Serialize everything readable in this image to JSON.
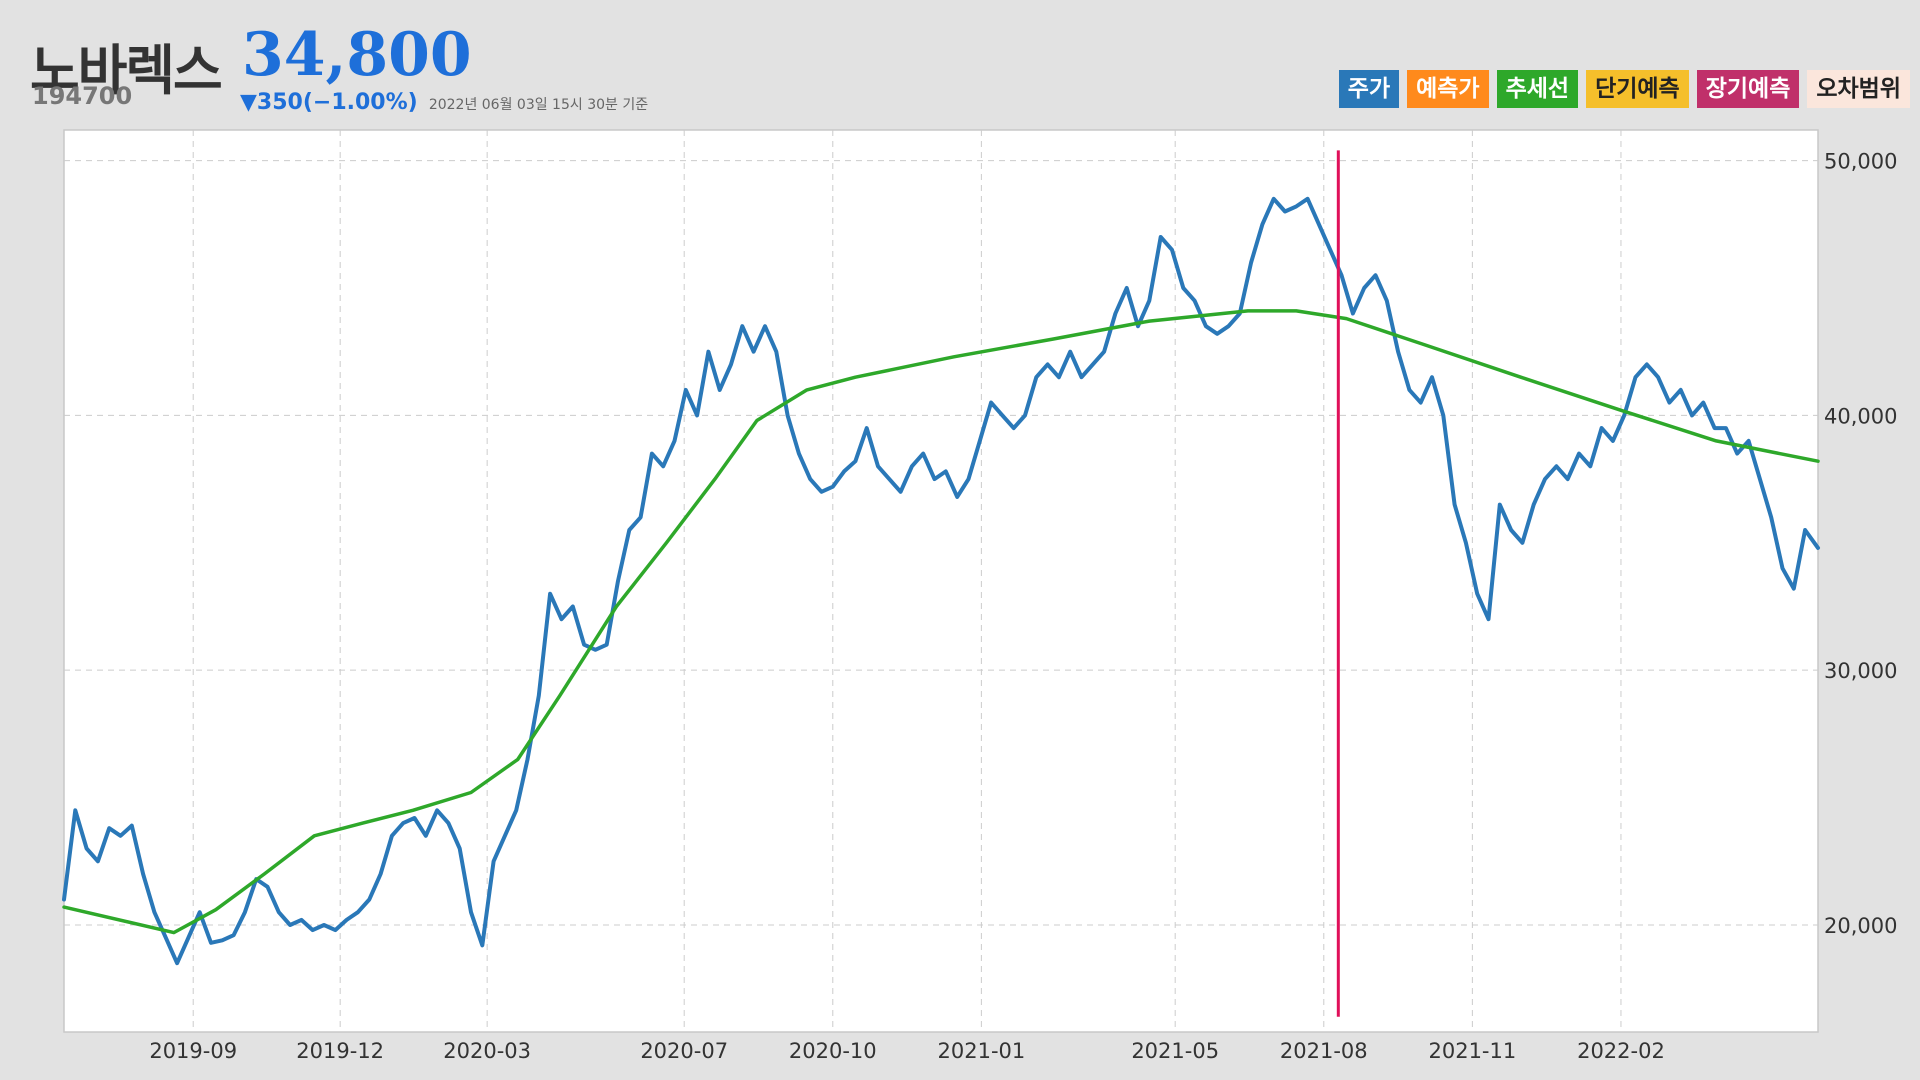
{
  "header": {
    "name": "노바렉스",
    "code": "194700",
    "price": "34,800",
    "change": "▼350(−1.00%)",
    "timestamp": "2022년 06월 03일 15시 30분 기준"
  },
  "legend": [
    {
      "label": "주가",
      "color": "#2a78b8",
      "text_color": "#ffffff"
    },
    {
      "label": "예측가",
      "color": "#ff8a1c",
      "text_color": "#ffffff"
    },
    {
      "label": "추세선",
      "color": "#2ea82a",
      "text_color": "#ffffff"
    },
    {
      "label": "단기예측",
      "color": "#f5bf2b",
      "text_color": "#222222"
    },
    {
      "label": "장기예측",
      "color": "#c0306a",
      "text_color": "#ffffff"
    },
    {
      "label": "오차범위",
      "color": "#fbe6dc",
      "text_color": "#222222"
    }
  ],
  "chart_data": {
    "type": "line",
    "y_axis_position": "right",
    "ylim": [
      15800,
      51200
    ],
    "y_ticks": [
      20000,
      30000,
      40000,
      50000
    ],
    "y_tick_labels": [
      "20,000",
      "30,000",
      "40,000",
      "50,000"
    ],
    "x_ticks": [
      "2019-09",
      "2019-12",
      "2020-03",
      "2020-07",
      "2020-10",
      "2021-01",
      "2021-05",
      "2021-08",
      "2021-11",
      "2022-02"
    ],
    "x_start": "2019-06-13",
    "x_end": "2022-06-03",
    "grid": true,
    "marker": {
      "date": "2021-08-10",
      "color": "#e0105a"
    },
    "series": [
      {
        "name": "주가",
        "color": "#2a78b8",
        "points": [
          [
            "2019-06-13",
            21000
          ],
          [
            "2019-06-20",
            24500
          ],
          [
            "2019-06-27",
            23000
          ],
          [
            "2019-07-04",
            22500
          ],
          [
            "2019-07-11",
            23800
          ],
          [
            "2019-07-18",
            23500
          ],
          [
            "2019-07-25",
            23900
          ],
          [
            "2019-08-01",
            22000
          ],
          [
            "2019-08-08",
            20500
          ],
          [
            "2019-08-15",
            19500
          ],
          [
            "2019-08-22",
            18500
          ],
          [
            "2019-08-29",
            19500
          ],
          [
            "2019-09-05",
            20500
          ],
          [
            "2019-09-12",
            19300
          ],
          [
            "2019-09-19",
            19400
          ],
          [
            "2019-09-26",
            19600
          ],
          [
            "2019-10-03",
            20500
          ],
          [
            "2019-10-10",
            21800
          ],
          [
            "2019-10-17",
            21500
          ],
          [
            "2019-10-24",
            20500
          ],
          [
            "2019-10-31",
            20000
          ],
          [
            "2019-11-07",
            20200
          ],
          [
            "2019-11-14",
            19800
          ],
          [
            "2019-11-21",
            20000
          ],
          [
            "2019-11-28",
            19800
          ],
          [
            "2019-12-05",
            20200
          ],
          [
            "2019-12-12",
            20500
          ],
          [
            "2019-12-19",
            21000
          ],
          [
            "2019-12-26",
            22000
          ],
          [
            "2020-01-02",
            23500
          ],
          [
            "2020-01-09",
            24000
          ],
          [
            "2020-01-16",
            24200
          ],
          [
            "2020-01-23",
            23500
          ],
          [
            "2020-01-30",
            24500
          ],
          [
            "2020-02-06",
            24000
          ],
          [
            "2020-02-13",
            23000
          ],
          [
            "2020-02-20",
            20500
          ],
          [
            "2020-02-27",
            19200
          ],
          [
            "2020-03-05",
            22500
          ],
          [
            "2020-03-12",
            23500
          ],
          [
            "2020-03-19",
            24500
          ],
          [
            "2020-03-26",
            26500
          ],
          [
            "2020-04-02",
            29000
          ],
          [
            "2020-04-09",
            33000
          ],
          [
            "2020-04-16",
            32000
          ],
          [
            "2020-04-23",
            32500
          ],
          [
            "2020-04-30",
            31000
          ],
          [
            "2020-05-07",
            30800
          ],
          [
            "2020-05-14",
            31000
          ],
          [
            "2020-05-21",
            33500
          ],
          [
            "2020-05-28",
            35500
          ],
          [
            "2020-06-04",
            36000
          ],
          [
            "2020-06-11",
            38500
          ],
          [
            "2020-06-18",
            38000
          ],
          [
            "2020-06-25",
            39000
          ],
          [
            "2020-07-02",
            41000
          ],
          [
            "2020-07-09",
            40000
          ],
          [
            "2020-07-16",
            42500
          ],
          [
            "2020-07-23",
            41000
          ],
          [
            "2020-07-30",
            42000
          ],
          [
            "2020-08-06",
            43500
          ],
          [
            "2020-08-13",
            42500
          ],
          [
            "2020-08-20",
            43500
          ],
          [
            "2020-08-27",
            42500
          ],
          [
            "2020-09-03",
            40000
          ],
          [
            "2020-09-10",
            38500
          ],
          [
            "2020-09-17",
            37500
          ],
          [
            "2020-09-24",
            37000
          ],
          [
            "2020-10-01",
            37200
          ],
          [
            "2020-10-08",
            37800
          ],
          [
            "2020-10-15",
            38200
          ],
          [
            "2020-10-22",
            39500
          ],
          [
            "2020-10-29",
            38000
          ],
          [
            "2020-11-05",
            37500
          ],
          [
            "2020-11-12",
            37000
          ],
          [
            "2020-11-19",
            38000
          ],
          [
            "2020-11-26",
            38500
          ],
          [
            "2020-12-03",
            37500
          ],
          [
            "2020-12-10",
            37800
          ],
          [
            "2020-12-17",
            36800
          ],
          [
            "2020-12-24",
            37500
          ],
          [
            "2020-12-31",
            39000
          ],
          [
            "2021-01-07",
            40500
          ],
          [
            "2021-01-14",
            40000
          ],
          [
            "2021-01-21",
            39500
          ],
          [
            "2021-01-28",
            40000
          ],
          [
            "2021-02-04",
            41500
          ],
          [
            "2021-02-11",
            42000
          ],
          [
            "2021-02-18",
            41500
          ],
          [
            "2021-02-25",
            42500
          ],
          [
            "2021-03-04",
            41500
          ],
          [
            "2021-03-11",
            42000
          ],
          [
            "2021-03-18",
            42500
          ],
          [
            "2021-03-25",
            44000
          ],
          [
            "2021-04-01",
            45000
          ],
          [
            "2021-04-08",
            43500
          ],
          [
            "2021-04-15",
            44500
          ],
          [
            "2021-04-22",
            47000
          ],
          [
            "2021-04-29",
            46500
          ],
          [
            "2021-05-06",
            45000
          ],
          [
            "2021-05-13",
            44500
          ],
          [
            "2021-05-20",
            43500
          ],
          [
            "2021-05-27",
            43200
          ],
          [
            "2021-06-03",
            43500
          ],
          [
            "2021-06-10",
            44000
          ],
          [
            "2021-06-17",
            46000
          ],
          [
            "2021-06-24",
            47500
          ],
          [
            "2021-07-01",
            48500
          ],
          [
            "2021-07-08",
            48000
          ],
          [
            "2021-07-15",
            48200
          ],
          [
            "2021-07-22",
            48500
          ],
          [
            "2021-07-29",
            47500
          ],
          [
            "2021-08-05",
            46500
          ],
          [
            "2021-08-12",
            45500
          ],
          [
            "2021-08-19",
            44000
          ],
          [
            "2021-08-26",
            45000
          ],
          [
            "2021-09-02",
            45500
          ],
          [
            "2021-09-09",
            44500
          ],
          [
            "2021-09-16",
            42500
          ],
          [
            "2021-09-23",
            41000
          ],
          [
            "2021-09-30",
            40500
          ],
          [
            "2021-10-07",
            41500
          ],
          [
            "2021-10-14",
            40000
          ],
          [
            "2021-10-21",
            36500
          ],
          [
            "2021-10-28",
            35000
          ],
          [
            "2021-11-04",
            33000
          ],
          [
            "2021-11-11",
            32000
          ],
          [
            "2021-11-18",
            36500
          ],
          [
            "2021-11-25",
            35500
          ],
          [
            "2021-12-02",
            35000
          ],
          [
            "2021-12-09",
            36500
          ],
          [
            "2021-12-16",
            37500
          ],
          [
            "2021-12-23",
            38000
          ],
          [
            "2021-12-30",
            37500
          ],
          [
            "2022-01-06",
            38500
          ],
          [
            "2022-01-13",
            38000
          ],
          [
            "2022-01-20",
            39500
          ],
          [
            "2022-01-27",
            39000
          ],
          [
            "2022-02-03",
            40000
          ],
          [
            "2022-02-10",
            41500
          ],
          [
            "2022-02-17",
            42000
          ],
          [
            "2022-02-24",
            41500
          ],
          [
            "2022-03-03",
            40500
          ],
          [
            "2022-03-10",
            41000
          ],
          [
            "2022-03-17",
            40000
          ],
          [
            "2022-03-24",
            40500
          ],
          [
            "2022-03-31",
            39500
          ],
          [
            "2022-04-07",
            39500
          ],
          [
            "2022-04-14",
            38500
          ],
          [
            "2022-04-21",
            39000
          ],
          [
            "2022-04-28",
            37500
          ],
          [
            "2022-05-05",
            36000
          ],
          [
            "2022-05-12",
            34000
          ],
          [
            "2022-05-19",
            33200
          ],
          [
            "2022-05-26",
            35500
          ],
          [
            "2022-06-03",
            34800
          ]
        ]
      },
      {
        "name": "추세선",
        "color": "#2ea82a",
        "points": [
          [
            "2019-06-13",
            20700
          ],
          [
            "2019-08-20",
            19700
          ],
          [
            "2019-09-15",
            20600
          ],
          [
            "2019-10-15",
            22000
          ],
          [
            "2019-11-15",
            23500
          ],
          [
            "2019-12-15",
            24000
          ],
          [
            "2020-01-15",
            24500
          ],
          [
            "2020-02-20",
            25200
          ],
          [
            "2020-03-20",
            26500
          ],
          [
            "2020-04-15",
            29000
          ],
          [
            "2020-05-20",
            32500
          ],
          [
            "2020-06-20",
            35000
          ],
          [
            "2020-07-20",
            37500
          ],
          [
            "2020-08-15",
            39800
          ],
          [
            "2020-09-15",
            41000
          ],
          [
            "2020-10-15",
            41500
          ],
          [
            "2020-12-15",
            42300
          ],
          [
            "2021-02-15",
            43000
          ],
          [
            "2021-04-15",
            43700
          ],
          [
            "2021-06-15",
            44100
          ],
          [
            "2021-07-15",
            44100
          ],
          [
            "2021-08-15",
            43800
          ],
          [
            "2021-10-01",
            42800
          ],
          [
            "2021-12-01",
            41500
          ],
          [
            "2022-02-01",
            40200
          ],
          [
            "2022-04-01",
            39000
          ],
          [
            "2022-06-03",
            38200
          ]
        ]
      }
    ]
  }
}
